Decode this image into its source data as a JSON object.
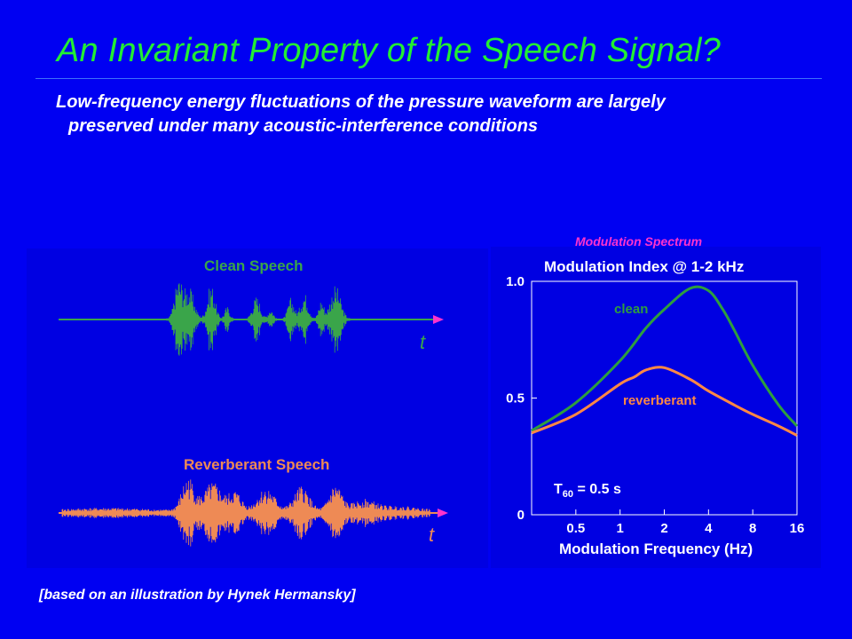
{
  "slide": {
    "title": "An Invariant Property of the Speech Signal?",
    "bullet_line1": "Low-frequency energy fluctuations of the pressure waveform are largely",
    "bullet_line2": "preserved under many acoustic-interference conditions",
    "modulation_label": "Modulation Spectrum",
    "credit": "[based on an illustration by Hynek Hermansky]"
  },
  "waveforms": {
    "clean_label": "Clean Speech",
    "reverb_label": "Reverberant Speech",
    "t_label": "t",
    "clean_color": "#3aa54a",
    "reverb_color": "#ee8a55",
    "axis_color": "#ff33cc"
  },
  "chart_data": {
    "type": "line",
    "title": "Modulation Index @ 1-2 kHz",
    "xlabel": "Modulation Frequency (Hz)",
    "ylabel": "",
    "x_scale": "log2",
    "x_ticks": [
      "0.5",
      "1",
      "2",
      "4",
      "8",
      "16"
    ],
    "y_ticks": [
      "0",
      "0.5",
      "1.0"
    ],
    "ylim": [
      0,
      1.0
    ],
    "annotation_main": "T",
    "annotation_sub": "60",
    "annotation_rest": " = 0.5 s",
    "series": [
      {
        "name": "clean",
        "color": "#2e9e3e",
        "x": [
          0.25,
          0.5,
          1,
          1.5,
          2,
          3,
          4,
          5,
          6,
          8,
          12,
          16
        ],
        "y": [
          0.36,
          0.48,
          0.66,
          0.8,
          0.88,
          0.97,
          0.96,
          0.88,
          0.79,
          0.64,
          0.47,
          0.38
        ]
      },
      {
        "name": "reverberant",
        "color": "#ff8844",
        "x": [
          0.25,
          0.5,
          1,
          1.25,
          1.5,
          2,
          3,
          4,
          6,
          8,
          12,
          16
        ],
        "y": [
          0.35,
          0.43,
          0.56,
          0.59,
          0.62,
          0.63,
          0.58,
          0.53,
          0.47,
          0.43,
          0.38,
          0.34
        ]
      }
    ]
  }
}
